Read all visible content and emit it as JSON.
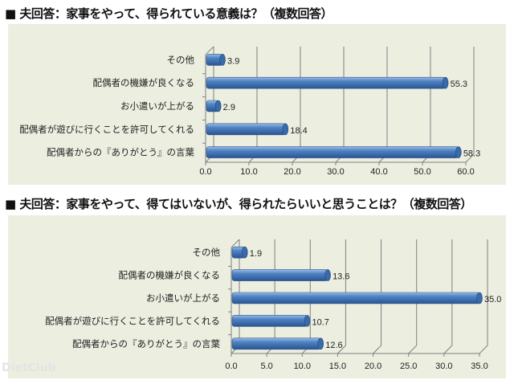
{
  "chart_data": [
    {
      "type": "bar",
      "orientation": "horizontal",
      "style": "3d-cylinder",
      "title": "■ 夫回答：家事をやって、得られている意義は？（複数回答）",
      "categories": [
        "その他",
        "配偶者の機嫌が良くなる",
        "お小遣いが上がる",
        "配偶者が遊びに行くことを許可してくれる",
        "配偶者からの『ありがとう』の言葉"
      ],
      "values": [
        3.9,
        55.3,
        2.9,
        18.4,
        58.3
      ],
      "value_labels": [
        "3.9",
        "55.3",
        "2.9",
        "18.4",
        "58.3"
      ],
      "xlim": [
        0,
        60
      ],
      "ticks": [
        "0.0",
        "10.0",
        "20.0",
        "30.0",
        "40.0",
        "50.0",
        "60.0"
      ],
      "grid": true,
      "bar_color": "#4a7ebb"
    },
    {
      "type": "bar",
      "orientation": "horizontal",
      "style": "3d-cylinder",
      "title": "■ 夫回答：家事をやって、得てはいないが、得られたらいいと思うことは？（複数回答）",
      "categories": [
        "その他",
        "配偶者の機嫌が良くなる",
        "お小遣いが上がる",
        "配偶者が遊びに行くことを許可してくれる",
        "配偶者からの『ありがとう』の言葉"
      ],
      "values": [
        1.9,
        13.6,
        35.0,
        10.7,
        12.6
      ],
      "value_labels": [
        "1.9",
        "13.6",
        "35.0",
        "10.7",
        "12.6"
      ],
      "xlim": [
        0,
        35
      ],
      "ticks": [
        "0.0",
        "5.0",
        "10.0",
        "15.0",
        "20.0",
        "25.0",
        "30.0",
        "35.0"
      ],
      "grid": true,
      "bar_color": "#4a7ebb"
    }
  ],
  "watermark": "DietClub",
  "colors": {
    "panel": "#eceee0",
    "bar": "#4a7ebb",
    "bar_dark": "#2b5590",
    "grid": "#808080"
  }
}
